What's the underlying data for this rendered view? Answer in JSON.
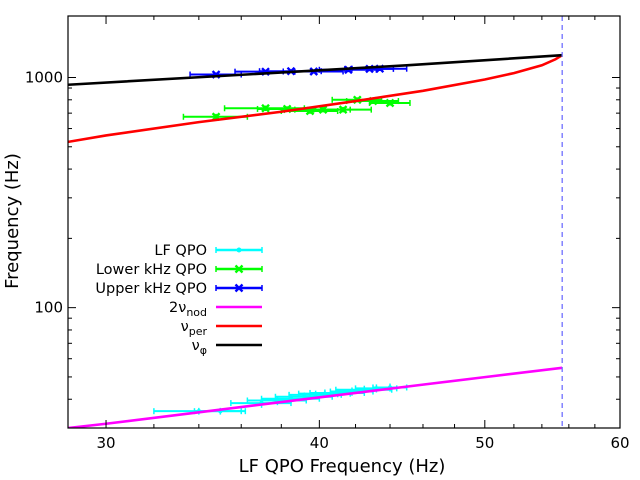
{
  "chart_data": {
    "type": "scatter",
    "title": "",
    "xlabel": "LF QPO Frequency (Hz)",
    "ylabel": "Frequency (Hz)",
    "xscale": "log",
    "yscale": "log",
    "xlim": [
      28.5,
      60
    ],
    "ylim": [
      30,
      1850
    ],
    "xticks": [
      30,
      40,
      50,
      60
    ],
    "yticks": [
      100,
      1000
    ],
    "vline_x": 55.5,
    "vline_color": "#6f6fff",
    "legend_position": "left-center",
    "series": [
      {
        "name": "LF QPO",
        "legend": {
          "text": "LF QPO"
        },
        "kind": "points",
        "color": "#00ffff",
        "marker": "dot",
        "x": [
          34,
          35,
          37,
          37.8,
          38.5,
          39.2,
          39.8,
          40.3,
          41,
          41.8,
          42.5,
          43.2,
          44
        ],
        "y": [
          35.5,
          35.5,
          38.5,
          39.5,
          40.2,
          41,
          41.8,
          42.3,
          42.6,
          43.2,
          44,
          44.6,
          45
        ],
        "xerr": [
          2.0,
          1.2,
          1.5,
          1.5,
          1.5,
          1.5,
          1.4,
          1.4,
          1.5,
          1.2,
          1.6,
          1.2,
          1.0
        ],
        "yerr": [
          1.2,
          1.2,
          1.8,
          1.8,
          1.8,
          1.8,
          1.8,
          1.8,
          1.8,
          1.8,
          1.8,
          1.8,
          1.8
        ]
      },
      {
        "name": "Lower kHz QPO",
        "legend": {
          "text": "Lower kHz QPO"
        },
        "kind": "points",
        "color": "#00ff00",
        "marker": "x",
        "x": [
          34.8,
          37.2,
          38.3,
          39.5,
          40.2,
          41.3,
          42.1,
          43,
          44
        ],
        "y": [
          675,
          735,
          730,
          715,
          725,
          725,
          800,
          790,
          775
        ],
        "xerr": [
          1.5,
          2.0,
          1.5,
          1.5,
          1.5,
          1.6,
          1.4,
          1.5,
          1.2
        ],
        "yerr": [
          20,
          20,
          20,
          20,
          20,
          20,
          20,
          20,
          20
        ]
      },
      {
        "name": "Upper kHz QPO",
        "legend": {
          "text": "Upper kHz QPO"
        },
        "kind": "points",
        "color": "#0000ff",
        "marker": "x",
        "x": [
          34.8,
          37.2,
          38.5,
          39.7,
          41.6,
          42.8,
          43.4
        ],
        "y": [
          1030,
          1060,
          1065,
          1062,
          1080,
          1090,
          1092
        ],
        "xerr": [
          1.2,
          1.5,
          1.6,
          1.6,
          1.6,
          1.4,
          1.6
        ],
        "yerr": [
          20,
          20,
          20,
          20,
          25,
          25,
          25
        ]
      },
      {
        "name": "2nu_nod",
        "legend": {
          "text": "2ν",
          "sub": "nod"
        },
        "kind": "line",
        "color": "#ff00ff",
        "x": [
          28.5,
          30,
          34,
          38,
          42,
          46,
          50,
          55.5
        ],
        "y": [
          30,
          31.3,
          35.1,
          38.9,
          42.6,
          46.3,
          49.9,
          54.8
        ]
      },
      {
        "name": "nu_per",
        "legend": {
          "text": "ν",
          "sub": "per"
        },
        "kind": "line",
        "color": "#ff0000",
        "x": [
          28.5,
          30,
          34,
          38,
          42,
          46,
          50,
          52,
          54,
          55,
          55.5
        ],
        "y": [
          525,
          560,
          640,
          710,
          790,
          875,
          980,
          1045,
          1130,
          1200,
          1250
        ]
      },
      {
        "name": "nu_phi",
        "legend": {
          "text": "ν",
          "sub": "φ"
        },
        "kind": "line",
        "color": "#000000",
        "x": [
          28.5,
          35,
          45,
          55.5
        ],
        "y": [
          930,
          1015,
          1130,
          1250
        ]
      }
    ]
  }
}
